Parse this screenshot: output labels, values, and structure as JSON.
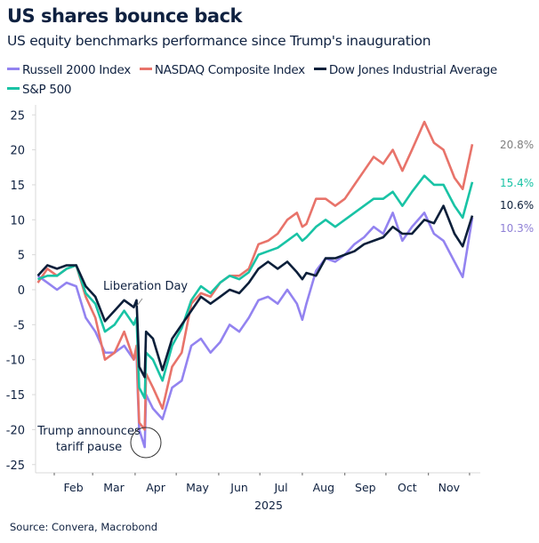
{
  "title": "US shares bounce back",
  "subtitle": "US equity benchmarks performance since Trump's inauguration",
  "source": "Source: Convera, Macrobond",
  "chart_data": {
    "type": "line",
    "xlabel": "2025",
    "ylabel": "",
    "ylim": [
      -25,
      25
    ],
    "yticks": [
      25,
      20,
      15,
      10,
      5,
      0,
      -5,
      -10,
      -15,
      -20,
      -25
    ],
    "xticklabels": [
      "Feb",
      "Mar",
      "Apr",
      "May",
      "Jun",
      "Jul",
      "Aug",
      "Sep",
      "Oct",
      "Nov"
    ],
    "grid": false,
    "legend_position": "top-left",
    "x": [
      "2025-01-20",
      "2025-01-27",
      "2025-02-03",
      "2025-02-10",
      "2025-02-17",
      "2025-02-24",
      "2025-03-03",
      "2025-03-10",
      "2025-03-17",
      "2025-03-24",
      "2025-03-31",
      "2025-04-02",
      "2025-04-03",
      "2025-04-04",
      "2025-04-08",
      "2025-04-09",
      "2025-04-14",
      "2025-04-21",
      "2025-04-28",
      "2025-05-05",
      "2025-05-12",
      "2025-05-19",
      "2025-05-26",
      "2025-06-02",
      "2025-06-09",
      "2025-06-16",
      "2025-06-23",
      "2025-06-30",
      "2025-07-07",
      "2025-07-14",
      "2025-07-21",
      "2025-07-28",
      "2025-08-01",
      "2025-08-04",
      "2025-08-11",
      "2025-08-18",
      "2025-08-25",
      "2025-09-01",
      "2025-09-08",
      "2025-09-15",
      "2025-09-22",
      "2025-09-29",
      "2025-10-06",
      "2025-10-13",
      "2025-10-20",
      "2025-10-29",
      "2025-11-05",
      "2025-11-12",
      "2025-11-20",
      "2025-11-26",
      "2025-12-03"
    ],
    "series": [
      {
        "name": "Russell 2000 Index",
        "color": "#9383f0",
        "end_label": "10.3%",
        "label_color": "#8e7fd6",
        "values": [
          2,
          1,
          0,
          1,
          0.5,
          -4,
          -6,
          -9,
          -9,
          -8,
          -10,
          -9,
          -15,
          -20,
          -22.5,
          -15,
          -17,
          -18.5,
          -14,
          -13,
          -8,
          -7,
          -9,
          -7.5,
          -5,
          -6,
          -4,
          -1.5,
          -1,
          -2,
          0,
          -2,
          -4.3,
          -2,
          2.7,
          4.5,
          4,
          5,
          6.5,
          7.5,
          9,
          8,
          11,
          7,
          9,
          11,
          8,
          7,
          4,
          1.8,
          10.3
        ]
      },
      {
        "name": "NASDAQ Composite Index",
        "color": "#e8736a",
        "end_label": "20.8%",
        "label_color": "#7f7f7f",
        "values": [
          1,
          3,
          2,
          3,
          3.5,
          -1,
          -4,
          -10,
          -9,
          -6,
          -10,
          -8,
          -14,
          -19,
          -20,
          -12,
          -14,
          -17,
          -11,
          -9,
          -2,
          -0.5,
          -1,
          1,
          2,
          2,
          3,
          6.5,
          7,
          8,
          10,
          11,
          9,
          9.4,
          13,
          13,
          12,
          13,
          15,
          17,
          19,
          18,
          20,
          17,
          20,
          24,
          21,
          20,
          16,
          14.4,
          20.8
        ]
      },
      {
        "name": "Dow Jones Industrial Average",
        "color": "#0c1f3a",
        "end_label": "10.6%",
        "label_color": "#0c1f3a",
        "values": [
          2,
          3.5,
          3,
          3.5,
          3.5,
          0.5,
          -1,
          -4.5,
          -3,
          -1.5,
          -2.5,
          -1.5,
          -6,
          -11,
          -12.5,
          -6,
          -7,
          -11.5,
          -7,
          -5,
          -3,
          -1,
          -2,
          -1,
          0,
          -0.5,
          1,
          3,
          4,
          3,
          4,
          2.5,
          1.5,
          2.4,
          2,
          4.5,
          4.5,
          5,
          5.5,
          6.5,
          7,
          7.5,
          9,
          8,
          8,
          10,
          9.5,
          12,
          8,
          6.2,
          10.6
        ]
      },
      {
        "name": "S&P 500",
        "color": "#19c3a5",
        "end_label": "15.4%",
        "label_color": "#19c3a5",
        "values": [
          1.5,
          2,
          2,
          3,
          3.5,
          -0.5,
          -2,
          -6,
          -5,
          -3,
          -5,
          -4,
          -9,
          -14,
          -15.5,
          -9,
          -10,
          -13,
          -8,
          -5.5,
          -1.5,
          0.5,
          -0.5,
          1,
          2,
          1.5,
          2.5,
          5,
          5.5,
          6,
          7,
          8,
          7,
          7.5,
          9,
          10,
          9,
          10,
          11,
          12,
          13,
          13,
          14,
          12,
          14,
          16.3,
          15,
          15,
          12,
          10.3,
          15.4
        ]
      }
    ],
    "annotations": [
      {
        "text": "Liberation Day",
        "x": "2025-04-02",
        "y": -1.5
      },
      {
        "text_lines": [
          "Trump announces",
          "tariff pause"
        ],
        "x": "2025-04-08",
        "y": -22.5
      }
    ]
  }
}
